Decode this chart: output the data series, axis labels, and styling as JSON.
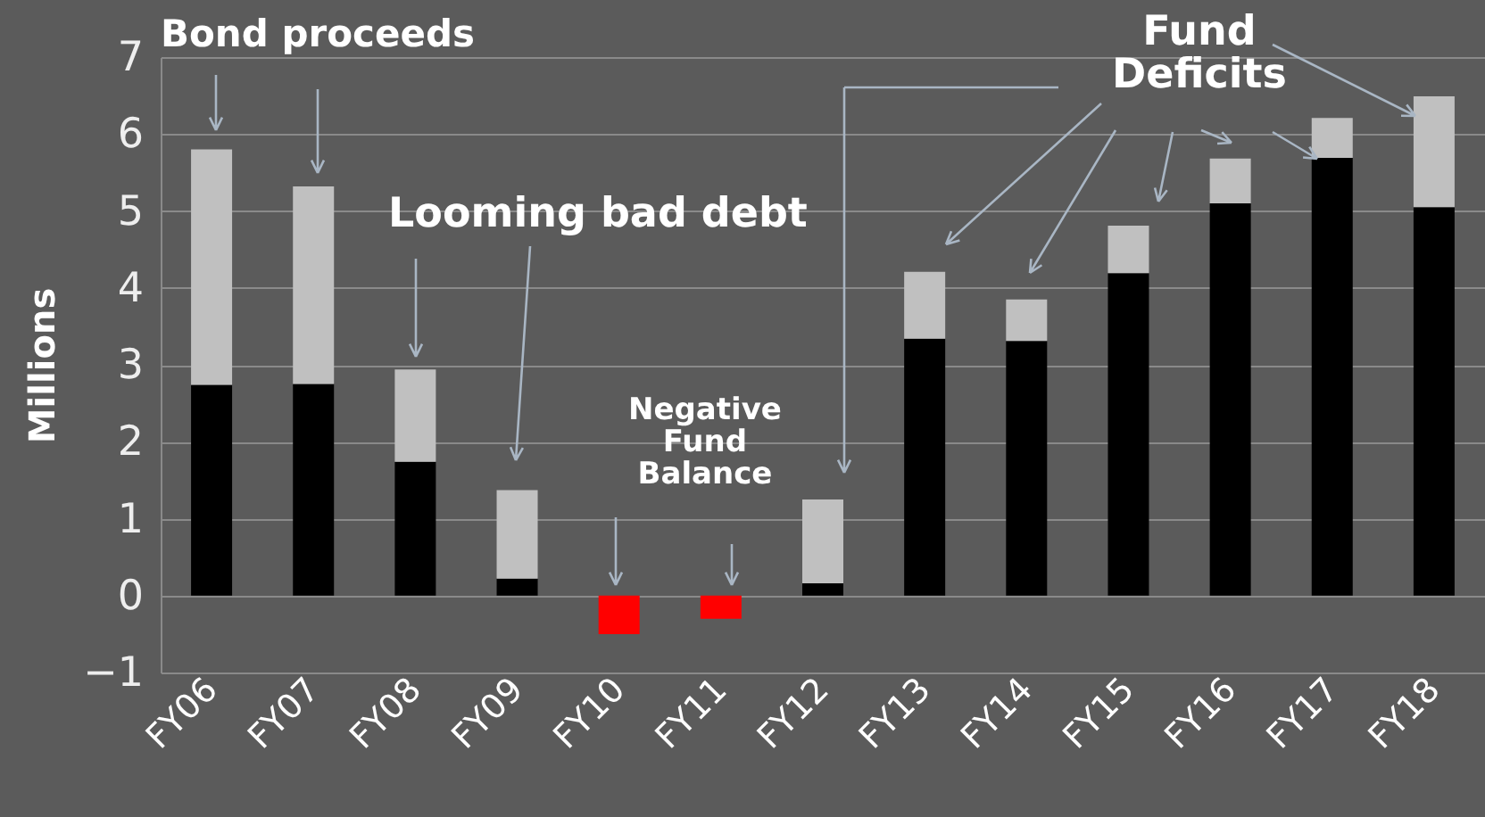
{
  "chart_data": {
    "type": "bar",
    "stacked": true,
    "ylabel": "Millions",
    "categories": [
      "FY06",
      "FY07",
      "FY08",
      "FY09",
      "FY10",
      "FY11",
      "FY12",
      "FY13",
      "FY14",
      "FY15",
      "FY16",
      "FY17",
      "FY18"
    ],
    "series": [
      {
        "color": "#000000",
        "values": [
          2.74,
          2.75,
          1.74,
          0.22,
          null,
          null,
          0.16,
          3.34,
          3.31,
          4.19,
          5.1,
          5.69,
          5.05
        ]
      },
      {
        "color": "#ff0000",
        "values": [
          null,
          null,
          null,
          null,
          -0.5,
          -0.3,
          null,
          null,
          null,
          null,
          null,
          null,
          null
        ]
      },
      {
        "color": "#c0c0c0",
        "values": [
          3.06,
          2.57,
          1.2,
          1.15,
          null,
          null,
          1.09,
          0.87,
          0.54,
          0.62,
          0.58,
          0.52,
          1.44
        ]
      }
    ],
    "ylim": [
      -1,
      7
    ],
    "yticks": [
      -1,
      0,
      1,
      2,
      3,
      4,
      5,
      6,
      7
    ],
    "grid": "y",
    "annotations": [
      "Bond proceeds",
      "Looming bad debt",
      "Negative Fund Balance",
      "Fund Deficits"
    ]
  }
}
